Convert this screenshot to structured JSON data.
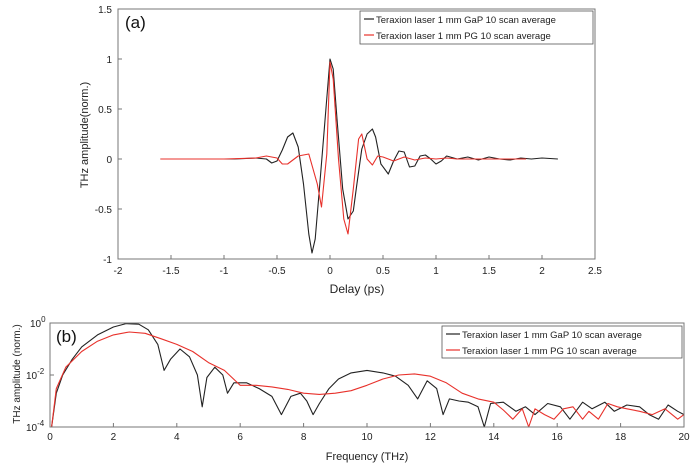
{
  "chart_data": [
    {
      "type": "line",
      "panel_label": "(a)",
      "xlabel": "Delay (ps)",
      "ylabel": "THz amplitude(norm.)",
      "xlim": [
        -2,
        2.5
      ],
      "ylim": [
        -1,
        1.5
      ],
      "xticks": [
        "-2",
        "-1.5",
        "-1",
        "-0.5",
        "0",
        "0.5",
        "1",
        "1.5",
        "2",
        "2.5"
      ],
      "yticks": [
        "-1",
        "-0.5",
        "0",
        "0.5",
        "1",
        "1.5"
      ],
      "grid": false,
      "legend_position": "top-right",
      "series": [
        {
          "name": "Teraxion laser 1 mm GaP 10 scan average",
          "color": "#222222",
          "x": [
            -1.6,
            -1.2,
            -0.9,
            -0.7,
            -0.6,
            -0.55,
            -0.5,
            -0.45,
            -0.4,
            -0.35,
            -0.3,
            -0.25,
            -0.2,
            -0.17,
            -0.14,
            -0.1,
            -0.05,
            0.0,
            0.03,
            0.07,
            0.12,
            0.17,
            0.22,
            0.25,
            0.3,
            0.35,
            0.4,
            0.43,
            0.48,
            0.55,
            0.6,
            0.65,
            0.7,
            0.75,
            0.8,
            0.85,
            0.9,
            0.95,
            1.0,
            1.05,
            1.1,
            1.2,
            1.3,
            1.4,
            1.5,
            1.6,
            1.7,
            1.8,
            1.9,
            2.0,
            2.15
          ],
          "y": [
            0.0,
            0.0,
            0.0,
            0.01,
            0.0,
            -0.04,
            -0.02,
            0.09,
            0.22,
            0.26,
            0.12,
            -0.25,
            -0.75,
            -0.94,
            -0.8,
            -0.3,
            0.35,
            1.0,
            0.9,
            0.35,
            -0.3,
            -0.6,
            -0.52,
            -0.28,
            0.1,
            0.25,
            0.3,
            0.22,
            -0.05,
            -0.15,
            -0.02,
            0.08,
            0.07,
            -0.08,
            -0.07,
            0.03,
            0.04,
            0.0,
            -0.05,
            -0.02,
            0.03,
            0.0,
            0.02,
            -0.01,
            0.02,
            0.0,
            -0.01,
            0.01,
            0.0,
            0.01,
            0.0
          ]
        },
        {
          "name": "Teraxion laser 1 mm PG 10 scan average",
          "color": "#e8312b",
          "x": [
            -1.6,
            -1.0,
            -0.7,
            -0.6,
            -0.5,
            -0.45,
            -0.4,
            -0.3,
            -0.2,
            -0.12,
            -0.08,
            -0.03,
            0.0,
            0.03,
            0.08,
            0.13,
            0.17,
            0.22,
            0.27,
            0.3,
            0.35,
            0.4,
            0.45,
            0.5,
            0.6,
            0.7,
            0.8,
            0.9,
            1.0,
            1.1,
            1.2,
            1.4,
            1.6,
            1.85
          ],
          "y": [
            0.0,
            0.0,
            0.01,
            0.03,
            0.01,
            -0.05,
            -0.05,
            0.03,
            0.05,
            -0.25,
            -0.48,
            0.05,
            0.97,
            0.8,
            0.0,
            -0.6,
            -0.75,
            -0.3,
            0.2,
            0.25,
            0.0,
            -0.06,
            0.03,
            0.02,
            -0.02,
            0.02,
            -0.01,
            0.01,
            0.0,
            0.01,
            0.0,
            0.0,
            0.0,
            0.0
          ]
        }
      ]
    },
    {
      "type": "line",
      "panel_label": "(b)",
      "xlabel": "Frequency (THz)",
      "ylabel": "THz amplitude (norm.)",
      "xlim": [
        0,
        20
      ],
      "ylim": [
        0.0001,
        1
      ],
      "yscale": "log",
      "xticks": [
        "0",
        "2",
        "4",
        "6",
        "8",
        "10",
        "12",
        "14",
        "16",
        "18",
        "20"
      ],
      "yticks": [
        {
          "base": "10",
          "exp": "-4"
        },
        {
          "base": "10",
          "exp": "-2"
        },
        {
          "base": "10",
          "exp": "0"
        }
      ],
      "grid": false,
      "legend_position": "top-right",
      "series": [
        {
          "name": "Teraxion laser 1 mm GaP 10 scan average",
          "color": "#222222",
          "x": [
            0.05,
            0.2,
            0.4,
            0.7,
            1.0,
            1.5,
            2.0,
            2.4,
            2.8,
            3.1,
            3.4,
            3.6,
            3.8,
            4.1,
            4.4,
            4.65,
            4.8,
            4.95,
            5.2,
            5.45,
            5.6,
            5.8,
            6.2,
            6.6,
            7.0,
            7.3,
            7.6,
            7.9,
            8.1,
            8.3,
            8.5,
            8.8,
            9.1,
            9.5,
            10.0,
            10.5,
            10.9,
            11.3,
            11.6,
            11.9,
            12.2,
            12.4,
            12.6,
            12.9,
            13.2,
            13.5,
            13.7,
            13.9,
            14.3,
            14.7,
            15.0,
            15.3,
            15.7,
            16.1,
            16.4,
            16.8,
            17.1,
            17.5,
            17.8,
            18.2,
            18.6,
            18.9,
            19.2,
            19.5,
            19.8,
            20.0
          ],
          "y": [
            0.0001,
            0.002,
            0.01,
            0.04,
            0.12,
            0.35,
            0.7,
            0.95,
            0.9,
            0.55,
            0.15,
            0.015,
            0.04,
            0.1,
            0.05,
            0.01,
            0.0006,
            0.008,
            0.02,
            0.01,
            0.002,
            0.005,
            0.005,
            0.003,
            0.0015,
            0.0003,
            0.0015,
            0.002,
            0.001,
            0.0003,
            0.0008,
            0.003,
            0.007,
            0.012,
            0.015,
            0.012,
            0.009,
            0.004,
            0.0012,
            0.006,
            0.003,
            0.0003,
            0.0012,
            0.001,
            0.0009,
            0.0006,
            0.0001,
            0.0008,
            0.0009,
            0.0004,
            0.0006,
            0.0003,
            0.0008,
            0.0006,
            0.0002,
            0.0009,
            0.0005,
            0.0009,
            0.0004,
            0.0007,
            0.0006,
            0.0003,
            0.0002,
            0.0007,
            0.0004,
            0.0003
          ]
        },
        {
          "name": "Teraxion laser 1 mm PG 10 scan average",
          "color": "#e8312b",
          "x": [
            0.05,
            0.2,
            0.5,
            1.0,
            1.5,
            2.0,
            2.5,
            3.0,
            3.5,
            4.0,
            4.5,
            5.0,
            5.5,
            6.0,
            6.5,
            7.0,
            7.5,
            8.0,
            8.5,
            9.0,
            9.5,
            10.0,
            10.5,
            11.0,
            11.5,
            12.0,
            12.5,
            13.0,
            13.5,
            14.0,
            14.3,
            14.6,
            14.9,
            15.1,
            15.3,
            15.6,
            15.9,
            16.2,
            16.5,
            16.8,
            17.0,
            17.3,
            17.6,
            17.9,
            18.2,
            18.6,
            19.0,
            19.4,
            19.8,
            20.0
          ],
          "y": [
            0.0001,
            0.003,
            0.02,
            0.08,
            0.2,
            0.35,
            0.45,
            0.4,
            0.25,
            0.15,
            0.08,
            0.03,
            0.015,
            0.004,
            0.004,
            0.0035,
            0.0028,
            0.002,
            0.0018,
            0.002,
            0.0025,
            0.004,
            0.007,
            0.01,
            0.011,
            0.009,
            0.005,
            0.002,
            0.0012,
            0.0009,
            0.00045,
            0.0002,
            0.0005,
            0.0001,
            0.0005,
            0.0003,
            0.0002,
            0.0005,
            0.0006,
            0.0002,
            0.0004,
            0.0002,
            0.0008,
            0.0006,
            0.0005,
            0.0004,
            0.0003,
            0.0005,
            0.0002,
            0.0003
          ]
        }
      ]
    }
  ]
}
